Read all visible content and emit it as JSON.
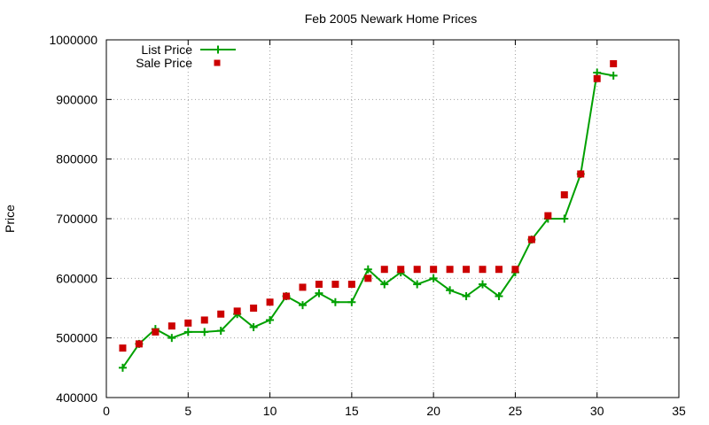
{
  "chart_data": {
    "type": "line",
    "title": "Feb 2005 Newark Home Prices",
    "xlabel": "",
    "ylabel": "Price",
    "xlim": [
      0,
      35
    ],
    "ylim": [
      400000,
      1000000
    ],
    "x_ticks": [
      0,
      5,
      10,
      15,
      20,
      25,
      30,
      35
    ],
    "y_ticks": [
      400000,
      500000,
      600000,
      700000,
      800000,
      900000,
      1000000
    ],
    "grid": true,
    "legend_position": "top-left",
    "series": [
      {
        "name": "List Price",
        "style": "line-with-plus-markers",
        "color": "#00a000",
        "x": [
          1,
          2,
          3,
          4,
          5,
          6,
          7,
          8,
          9,
          10,
          11,
          12,
          13,
          14,
          15,
          16,
          17,
          18,
          19,
          20,
          21,
          22,
          23,
          24,
          25,
          26,
          27,
          28,
          29,
          30,
          31
        ],
        "y": [
          450000,
          490000,
          515000,
          500000,
          510000,
          510000,
          512000,
          540000,
          518000,
          530000,
          570000,
          555000,
          575000,
          560000,
          560000,
          615000,
          590000,
          610000,
          590000,
          600000,
          580000,
          570000,
          590000,
          570000,
          610000,
          665000,
          700000,
          700000,
          775000,
          945000,
          940000
        ]
      },
      {
        "name": "Sale Price",
        "style": "square-markers",
        "color": "#cc0000",
        "x": [
          1,
          2,
          3,
          4,
          5,
          6,
          7,
          8,
          9,
          10,
          11,
          12,
          13,
          14,
          15,
          16,
          17,
          18,
          19,
          20,
          21,
          22,
          23,
          24,
          25,
          26,
          27,
          28,
          29,
          30,
          31
        ],
        "y": [
          483000,
          490000,
          510000,
          520000,
          525000,
          530000,
          540000,
          545000,
          550000,
          560000,
          570000,
          585000,
          590000,
          590000,
          590000,
          600000,
          615000,
          615000,
          615000,
          615000,
          615000,
          615000,
          615000,
          615000,
          615000,
          665000,
          705000,
          740000,
          775000,
          935000,
          960000
        ]
      }
    ]
  }
}
